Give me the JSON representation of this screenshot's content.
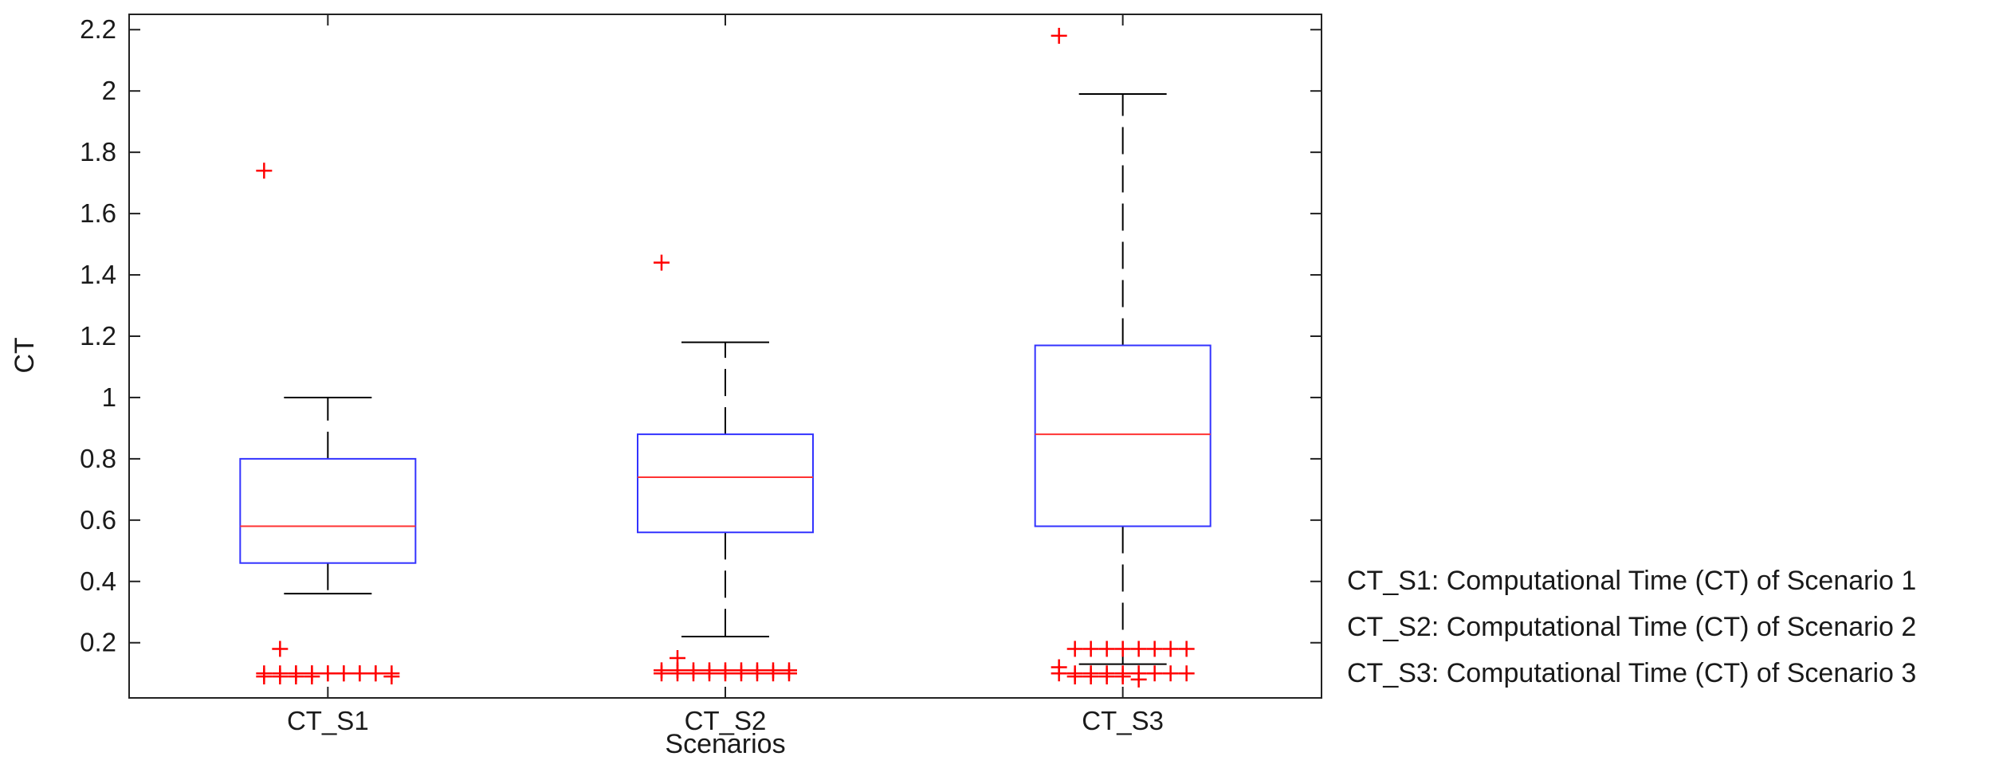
{
  "chart_data": {
    "type": "boxplot",
    "title": "",
    "xlabel": "Scenarios",
    "ylabel": "CT",
    "ylim": [
      0.02,
      2.25
    ],
    "yticks": [
      0.2,
      0.4,
      0.6,
      0.8,
      1,
      1.2,
      1.4,
      1.6,
      1.8,
      2,
      2.2
    ],
    "ytick_labels": [
      "0.2",
      "0.4",
      "0.6",
      "0.8",
      "1",
      "1.2",
      "1.4",
      "1.6",
      "1.8",
      "2",
      "2.2"
    ],
    "categories": [
      "CT_S1",
      "CT_S2",
      "CT_S3"
    ],
    "boxes": [
      {
        "category": "CT_S1",
        "whisker_low": 0.36,
        "q1": 0.46,
        "median": 0.58,
        "q3": 0.8,
        "whisker_high": 1.0,
        "outliers": [
          1.74,
          0.18,
          0.1,
          0.1,
          0.1,
          0.1,
          0.1,
          0.1,
          0.1,
          0.1,
          0.1,
          0.1,
          0.1,
          0.1,
          0.1,
          0.1,
          0.1,
          0.09,
          0.09,
          0.09,
          0.09,
          0.09
        ]
      },
      {
        "category": "CT_S2",
        "whisker_low": 0.22,
        "q1": 0.56,
        "median": 0.74,
        "q3": 0.88,
        "whisker_high": 1.18,
        "outliers": [
          1.44,
          0.15,
          0.11,
          0.11,
          0.11,
          0.11,
          0.11,
          0.11,
          0.11,
          0.11,
          0.11,
          0.1,
          0.1,
          0.1,
          0.1,
          0.1,
          0.1,
          0.1,
          0.1,
          0.1
        ]
      },
      {
        "category": "CT_S3",
        "whisker_low": 0.13,
        "q1": 0.58,
        "median": 0.88,
        "q3": 1.17,
        "whisker_high": 1.99,
        "outliers": [
          2.18,
          0.18,
          0.18,
          0.18,
          0.18,
          0.18,
          0.18,
          0.18,
          0.18,
          0.12,
          0.1,
          0.1,
          0.1,
          0.1,
          0.1,
          0.1,
          0.1,
          0.1,
          0.1,
          0.09,
          0.09,
          0.09,
          0.09,
          0.08
        ]
      }
    ],
    "colors": {
      "box": "#3333ff",
      "median": "#ff3333",
      "whisker": "#000000",
      "outlier": "#ff0000",
      "frame": "#222222"
    },
    "grid": false,
    "legend": "none"
  },
  "notes": [
    "CT_S1: Computational Time (CT) of Scenario 1",
    "CT_S2: Computational Time (CT) of Scenario 2",
    "CT_S3: Computational Time (CT) of Scenario 3"
  ]
}
